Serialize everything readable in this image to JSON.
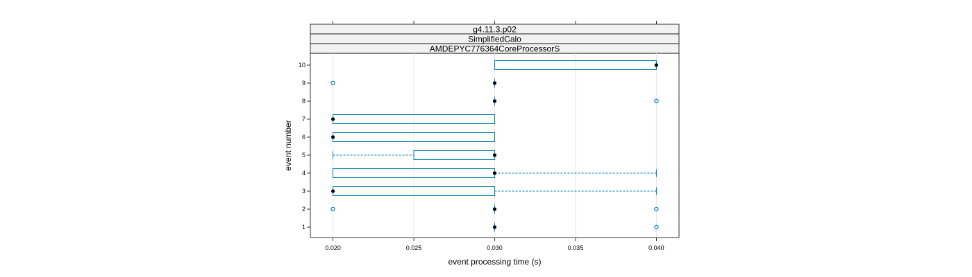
{
  "chart_data": {
    "type": "boxplot",
    "strips": [
      "g4.11.3.p02",
      "SimplifiedCalo",
      "AMDEPYC776364CoreProcessorS"
    ],
    "xlabel": "event processing time (s)",
    "ylabel": "event number",
    "xlim": [
      0.0186,
      0.0414
    ],
    "x_ticks": [
      0.02,
      0.025,
      0.03,
      0.035,
      0.04
    ],
    "x_tick_labels": [
      "0.020",
      "0.025",
      "0.030",
      "0.035",
      "0.040"
    ],
    "y_ticks": [
      1,
      2,
      3,
      4,
      5,
      6,
      7,
      8,
      9,
      10
    ],
    "y_tick_labels": [
      "1",
      "2",
      "3",
      "4",
      "5",
      "6",
      "7",
      "8",
      "9",
      "10"
    ],
    "grid": true,
    "colors": {
      "box": "#0080b0",
      "whisker": "#0080b0",
      "median": "#000000",
      "outlier": "#0080b0",
      "strip_bg": "#f2f2f2",
      "grid": "#e6e6e6"
    },
    "boxes": [
      {
        "event": 1,
        "q1": 0.03,
        "median": 0.03,
        "q3": 0.03,
        "wlow": 0.03,
        "whigh": 0.03,
        "outliers": [
          0.04
        ]
      },
      {
        "event": 2,
        "q1": 0.03,
        "median": 0.03,
        "q3": 0.03,
        "wlow": 0.03,
        "whigh": 0.03,
        "outliers": [
          0.02,
          0.04
        ]
      },
      {
        "event": 3,
        "q1": 0.02,
        "median": 0.02,
        "q3": 0.03,
        "wlow": 0.02,
        "whigh": 0.04,
        "outliers": []
      },
      {
        "event": 4,
        "q1": 0.02,
        "median": 0.03,
        "q3": 0.03,
        "wlow": 0.02,
        "whigh": 0.04,
        "outliers": []
      },
      {
        "event": 5,
        "q1": 0.025,
        "median": 0.03,
        "q3": 0.03,
        "wlow": 0.02,
        "whigh": 0.03,
        "outliers": []
      },
      {
        "event": 6,
        "q1": 0.02,
        "median": 0.02,
        "q3": 0.03,
        "wlow": 0.02,
        "whigh": 0.03,
        "outliers": []
      },
      {
        "event": 7,
        "q1": 0.02,
        "median": 0.02,
        "q3": 0.03,
        "wlow": 0.02,
        "whigh": 0.03,
        "outliers": []
      },
      {
        "event": 8,
        "q1": 0.03,
        "median": 0.03,
        "q3": 0.03,
        "wlow": 0.03,
        "whigh": 0.03,
        "outliers": [
          0.04
        ]
      },
      {
        "event": 9,
        "q1": 0.03,
        "median": 0.03,
        "q3": 0.03,
        "wlow": 0.03,
        "whigh": 0.03,
        "outliers": [
          0.02
        ]
      },
      {
        "event": 10,
        "q1": 0.03,
        "median": 0.04,
        "q3": 0.04,
        "wlow": 0.03,
        "whigh": 0.04,
        "outliers": []
      }
    ]
  }
}
